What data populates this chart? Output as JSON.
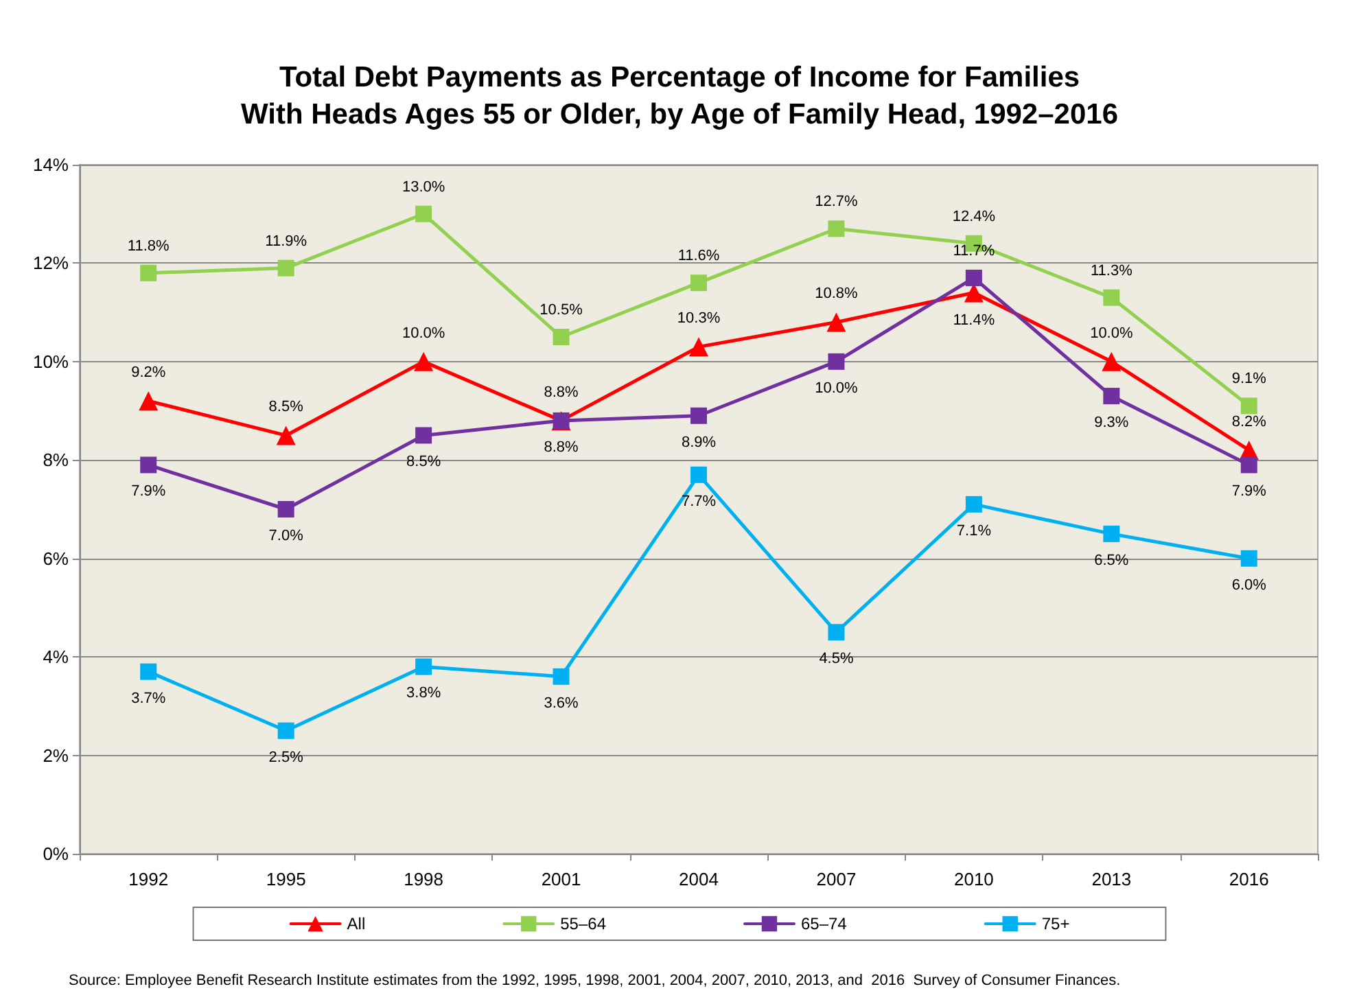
{
  "chart_data": {
    "type": "line",
    "title": "Total Debt Payments as Percentage of Income for Families\nWith Heads Ages 55 or Older, by Age of Family Head, 1992–2016",
    "categories": [
      "1992",
      "1995",
      "1998",
      "2001",
      "2004",
      "2007",
      "2010",
      "2013",
      "2016"
    ],
    "series": [
      {
        "name": "All",
        "color": "#ff0000",
        "marker": "triangle",
        "values": [
          9.2,
          8.5,
          10.0,
          8.8,
          10.3,
          10.8,
          11.4,
          10.0,
          8.2
        ],
        "value_labels": [
          "9.2%",
          "8.5%",
          "10.0%",
          "8.8%",
          "10.3%",
          "10.8%",
          "11.4%",
          "10.0%",
          "8.2%"
        ]
      },
      {
        "name": "55–64",
        "color": "#92d050",
        "marker": "square",
        "values": [
          11.8,
          11.9,
          13.0,
          10.5,
          11.6,
          12.7,
          12.4,
          11.3,
          9.1
        ],
        "value_labels": [
          "11.8%",
          "11.9%",
          "13.0%",
          "10.5%",
          "11.6%",
          "12.7%",
          "12.4%",
          "11.3%",
          "9.1%"
        ]
      },
      {
        "name": "65–74",
        "color": "#7030a0",
        "marker": "square",
        "values": [
          7.9,
          7.0,
          8.5,
          8.8,
          8.9,
          10.0,
          11.7,
          9.3,
          7.9
        ],
        "value_labels": [
          "7.9%",
          "7.0%",
          "8.5%",
          "8.8%",
          "8.9%",
          "10.0%",
          "11.7%",
          "9.3%",
          "7.9%"
        ]
      },
      {
        "name": "75+",
        "color": "#00b0f0",
        "marker": "square",
        "values": [
          3.7,
          2.5,
          3.8,
          3.6,
          7.7,
          4.5,
          7.1,
          6.5,
          6.0
        ],
        "value_labels": [
          "3.7%",
          "2.5%",
          "3.8%",
          "3.6%",
          "7.7%",
          "4.5%",
          "7.1%",
          "6.5%",
          "6.0%"
        ]
      }
    ],
    "ylim": [
      0,
      14
    ],
    "yticks": [
      {
        "value": 0,
        "label": "0%"
      },
      {
        "value": 2,
        "label": "2%"
      },
      {
        "value": 4,
        "label": "4%"
      },
      {
        "value": 6,
        "label": "6%"
      },
      {
        "value": 8,
        "label": "8%"
      },
      {
        "value": 10,
        "label": "10%"
      },
      {
        "value": 12,
        "label": "12%"
      },
      {
        "value": 14,
        "label": "14%"
      }
    ],
    "grid": "y",
    "legend": "bottom",
    "line_style": "solid",
    "annotations": [
      "Source: Employee Benefit Research Institute estimates from the 1992, 1995, 1998, 2001, 2004, 2007, 2010, 2013, and  2016  Survey of Consumer Finances."
    ]
  }
}
